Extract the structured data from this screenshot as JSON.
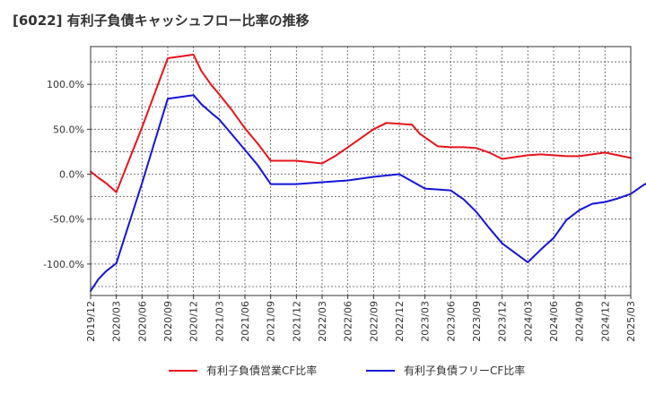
{
  "title": "[6022]  有利子負債キャッシュフロー比率の推移",
  "chart_data": {
    "type": "line",
    "title": "[6022]  有利子負債キャッシュフロー比率の推移",
    "xlabel": "",
    "ylabel": "",
    "x_tick_labels": [
      "2019/12",
      "2020/03",
      "2020/06",
      "2020/09",
      "2020/12",
      "2021/03",
      "2021/06",
      "2021/09",
      "2021/12",
      "2022/03",
      "2022/06",
      "2022/09",
      "2022/12",
      "2023/03",
      "2023/06",
      "2023/09",
      "2023/12",
      "2024/03",
      "2024/06",
      "2024/09",
      "2024/12",
      "2025/03"
    ],
    "y_tick_labels": [
      "100.0%",
      "50.0%",
      "0.0%",
      "-50.0%",
      "-100.0%"
    ],
    "y_tick_values": [
      100,
      50,
      0,
      -50,
      -100
    ],
    "ylim": [
      -135,
      142
    ],
    "grid": true,
    "legend_position": "bottom",
    "series": [
      {
        "name": "有利子負債営業CF比率",
        "color": "#e8141b",
        "points": [
          [
            0,
            3
          ],
          [
            0.3,
            -4
          ],
          [
            0.6,
            -10
          ],
          [
            1,
            -20
          ],
          [
            2,
            52
          ],
          [
            3,
            129
          ],
          [
            4,
            133
          ],
          [
            4.3,
            115
          ],
          [
            4.7,
            99
          ],
          [
            5,
            89
          ],
          [
            5.5,
            71
          ],
          [
            6,
            51
          ],
          [
            6.5,
            34
          ],
          [
            7,
            15
          ],
          [
            8,
            15
          ],
          [
            9,
            12
          ],
          [
            9.5,
            20
          ],
          [
            10,
            30
          ],
          [
            10.5,
            40
          ],
          [
            11,
            50
          ],
          [
            11.5,
            57
          ],
          [
            12.5,
            55
          ],
          [
            12.8,
            45
          ],
          [
            13.2,
            37
          ],
          [
            13.5,
            31
          ],
          [
            14,
            30
          ],
          [
            14.5,
            30
          ],
          [
            15,
            29
          ],
          [
            15.5,
            24
          ],
          [
            16,
            17
          ],
          [
            16.5,
            19
          ],
          [
            17,
            21
          ],
          [
            17.5,
            22
          ],
          [
            18,
            21
          ],
          [
            18.5,
            20
          ],
          [
            19,
            20
          ],
          [
            19.5,
            22
          ],
          [
            20,
            24
          ],
          [
            20.5,
            21
          ],
          [
            21,
            18
          ]
        ]
      },
      {
        "name": "有利子負債フリーCF比率",
        "color": "#1515d6",
        "points": [
          [
            0,
            -130
          ],
          [
            0.3,
            -117
          ],
          [
            0.6,
            -108
          ],
          [
            1,
            -99
          ],
          [
            2,
            -10
          ],
          [
            3,
            84
          ],
          [
            4,
            88
          ],
          [
            4.3,
            78
          ],
          [
            4.7,
            68
          ],
          [
            5,
            61
          ],
          [
            5.5,
            44
          ],
          [
            6,
            27
          ],
          [
            6.5,
            10
          ],
          [
            7,
            -11
          ],
          [
            8,
            -11
          ],
          [
            9,
            -9
          ],
          [
            10,
            -7
          ],
          [
            11,
            -3
          ],
          [
            12,
            0
          ],
          [
            13,
            -16
          ],
          [
            14,
            -18
          ],
          [
            14.5,
            -28
          ],
          [
            15,
            -42
          ],
          [
            15.5,
            -60
          ],
          [
            16,
            -77
          ],
          [
            17,
            -98
          ],
          [
            17.5,
            -84
          ],
          [
            18,
            -71
          ],
          [
            18.5,
            -51
          ],
          [
            19,
            -40
          ],
          [
            19.5,
            -33
          ],
          [
            20,
            -31
          ],
          [
            20.5,
            -27
          ],
          [
            21,
            -22
          ],
          [
            21.5,
            -12
          ],
          [
            22,
            -4
          ],
          [
            22.5,
            4
          ]
        ]
      }
    ]
  }
}
